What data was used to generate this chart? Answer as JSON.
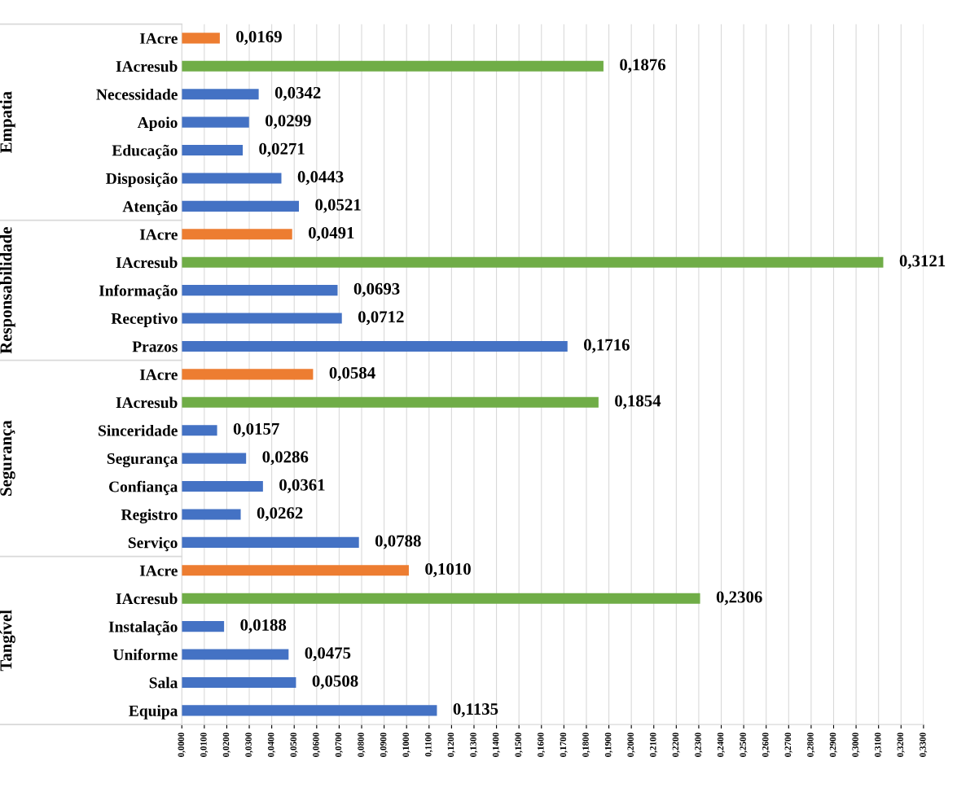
{
  "chart_data": {
    "type": "bar",
    "orientation": "horizontal",
    "categories": [
      "IAcre",
      "IAcresub",
      "Necessidade",
      "Apoio",
      "Educação",
      "Disposição",
      "Atenção",
      "IAcre",
      "IAcresub",
      "Informação",
      "Receptivo",
      "Prazos",
      "IAcre",
      "IAcresub",
      "Sinceridade",
      "Segurança",
      "Confiança",
      "Registro",
      "Serviço",
      "IAcre",
      "IAcresub",
      "Instalação",
      "Uniforme",
      "Sala",
      "Equipa"
    ],
    "values": [
      0.0169,
      0.1876,
      0.0342,
      0.0299,
      0.0271,
      0.0443,
      0.0521,
      0.0491,
      0.3121,
      0.0693,
      0.0712,
      0.1716,
      0.0584,
      0.1854,
      0.0157,
      0.0286,
      0.0361,
      0.0262,
      0.0788,
      0.101,
      0.2306,
      0.0188,
      0.0475,
      0.0508,
      0.1135
    ],
    "value_labels": [
      "0,0169",
      "0,1876",
      "0,0342",
      "0,0299",
      "0,0271",
      "0,0443",
      "0,0521",
      "0,0491",
      "0,3121",
      "0,0693",
      "0,0712",
      "0,1716",
      "0,0584",
      "0,1854",
      "0,0157",
      "0,0286",
      "0,0361",
      "0,0262",
      "0,0788",
      "0,1010",
      "0,2306",
      "0,0188",
      "0,0475",
      "0,0508",
      "0,1135"
    ],
    "colors": [
      "#ed7d31",
      "#70ad47",
      "#4472c4",
      "#4472c4",
      "#4472c4",
      "#4472c4",
      "#4472c4",
      "#ed7d31",
      "#70ad47",
      "#4472c4",
      "#4472c4",
      "#4472c4",
      "#ed7d31",
      "#70ad47",
      "#4472c4",
      "#4472c4",
      "#4472c4",
      "#4472c4",
      "#4472c4",
      "#ed7d31",
      "#70ad47",
      "#4472c4",
      "#4472c4",
      "#4472c4",
      "#4472c4"
    ],
    "annotations": [
      "Empatia",
      "Responsabilidade",
      "Segurança",
      "Tangível"
    ],
    "xlim": [
      0,
      0.33
    ],
    "xticks": [
      {
        "value": 0,
        "label": "0,0000"
      },
      {
        "value": 0.01,
        "label": "0,0100"
      },
      {
        "value": 0.02,
        "label": "0,0200"
      },
      {
        "value": 0.03,
        "label": "0,0300"
      },
      {
        "value": 0.04,
        "label": "0,0400"
      },
      {
        "value": 0.05,
        "label": "0,0500"
      },
      {
        "value": 0.06,
        "label": "0,0600"
      },
      {
        "value": 0.07,
        "label": "0,0700"
      },
      {
        "value": 0.08,
        "label": "0,0800"
      },
      {
        "value": 0.09,
        "label": "0,0900"
      },
      {
        "value": 0.1,
        "label": "0,1000"
      },
      {
        "value": 0.11,
        "label": "0,1100"
      },
      {
        "value": 0.12,
        "label": "0,1200"
      },
      {
        "value": 0.13,
        "label": "0,1300"
      },
      {
        "value": 0.14,
        "label": "0,1400"
      },
      {
        "value": 0.15,
        "label": "0,1500"
      },
      {
        "value": 0.16,
        "label": "0,1600"
      },
      {
        "value": 0.17,
        "label": "0,1700"
      },
      {
        "value": 0.18,
        "label": "0,1800"
      },
      {
        "value": 0.19,
        "label": "0,1900"
      },
      {
        "value": 0.2,
        "label": "0,2000"
      },
      {
        "value": 0.21,
        "label": "0,2100"
      },
      {
        "value": 0.22,
        "label": "0,2200"
      },
      {
        "value": 0.23,
        "label": "0,2300"
      },
      {
        "value": 0.24,
        "label": "0,2400"
      },
      {
        "value": 0.25,
        "label": "0,2500"
      },
      {
        "value": 0.26,
        "label": "0,2600"
      },
      {
        "value": 0.27,
        "label": "0,2700"
      },
      {
        "value": 0.28,
        "label": "0,2800"
      },
      {
        "value": 0.29,
        "label": "0,2900"
      },
      {
        "value": 0.3,
        "label": "0,3000"
      },
      {
        "value": 0.31,
        "label": "0,3100"
      },
      {
        "value": 0.32,
        "label": "0,3200"
      },
      {
        "value": 0.33,
        "label": "0,3300"
      }
    ],
    "grid": "x",
    "legend": false
  }
}
